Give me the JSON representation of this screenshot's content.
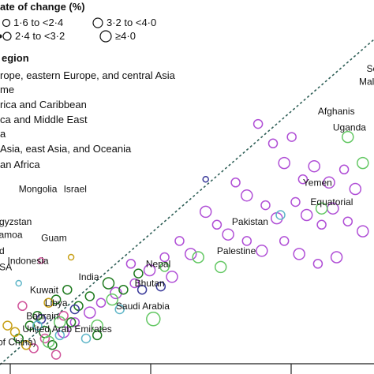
{
  "colors": {
    "europe": "#a7a9ac",
    "latin_america": "#1f7a1f",
    "middle_east": "#d0559b",
    "south_asia": "#3b3b9a",
    "southeast_asia": "#c8a017",
    "sub_saharan": "#b04fd6",
    "high_income": "#5fb6c8",
    "other": "#64c864",
    "reference_line": "#2f5f57"
  },
  "legend": {
    "rate_title": "ate of change (%)",
    "rate_items": [
      "1·6 to <2·4",
      "3·2 to <4·0",
      "2·4 to <3·2",
      "≥4·0"
    ],
    "region_title": "egion",
    "region_items": [
      "rope, eastern Europe, and central Asia",
      "me",
      "rica and Caribbean",
      "ca and Middle East",
      "a",
      "Asia, east Asia, and Oceania",
      "an Africa"
    ]
  },
  "chart_data": {
    "type": "scatter",
    "title": "",
    "xlabel": "",
    "ylabel": "",
    "grid": false,
    "reference_line": "dashed diagonal (y = x)",
    "series": [
      {
        "region": "sub_saharan",
        "points": [
          {
            "x": 0.69,
            "y": 0.74,
            "size": 2
          },
          {
            "x": 0.73,
            "y": 0.68,
            "size": 2
          },
          {
            "x": 0.78,
            "y": 0.7,
            "size": 2
          },
          {
            "x": 0.76,
            "y": 0.62,
            "size": 3
          },
          {
            "x": 0.84,
            "y": 0.61,
            "size": 3
          },
          {
            "x": 0.81,
            "y": 0.57,
            "size": 2
          },
          {
            "x": 0.88,
            "y": 0.56,
            "size": 3
          },
          {
            "x": 0.92,
            "y": 0.6,
            "size": 2
          },
          {
            "x": 0.95,
            "y": 0.54,
            "size": 3
          },
          {
            "x": 0.63,
            "y": 0.56,
            "size": 2
          },
          {
            "x": 0.66,
            "y": 0.52,
            "size": 3
          },
          {
            "x": 0.71,
            "y": 0.49,
            "size": 2
          },
          {
            "x": 0.74,
            "y": 0.45,
            "size": 3
          },
          {
            "x": 0.79,
            "y": 0.5,
            "size": 2
          },
          {
            "x": 0.82,
            "y": 0.46,
            "size": 3
          },
          {
            "x": 0.86,
            "y": 0.43,
            "size": 2
          },
          {
            "x": 0.89,
            "y": 0.48,
            "size": 3
          },
          {
            "x": 0.93,
            "y": 0.44,
            "size": 2
          },
          {
            "x": 0.97,
            "y": 0.41,
            "size": 3
          },
          {
            "x": 0.55,
            "y": 0.47,
            "size": 3
          },
          {
            "x": 0.58,
            "y": 0.43,
            "size": 2
          },
          {
            "x": 0.61,
            "y": 0.4,
            "size": 3
          },
          {
            "x": 0.66,
            "y": 0.38,
            "size": 2
          },
          {
            "x": 0.7,
            "y": 0.35,
            "size": 3
          },
          {
            "x": 0.76,
            "y": 0.38,
            "size": 2
          },
          {
            "x": 0.8,
            "y": 0.34,
            "size": 3
          },
          {
            "x": 0.85,
            "y": 0.31,
            "size": 2
          },
          {
            "x": 0.9,
            "y": 0.33,
            "size": 3
          },
          {
            "x": 0.48,
            "y": 0.38,
            "size": 2
          },
          {
            "x": 0.51,
            "y": 0.34,
            "size": 3
          },
          {
            "x": 0.44,
            "y": 0.33,
            "size": 2
          },
          {
            "x": 0.4,
            "y": 0.29,
            "size": 3
          },
          {
            "x": 0.36,
            "y": 0.25,
            "size": 2
          },
          {
            "x": 0.31,
            "y": 0.22,
            "size": 3
          },
          {
            "x": 0.27,
            "y": 0.19,
            "size": 2
          },
          {
            "x": 0.24,
            "y": 0.16,
            "size": 3
          },
          {
            "x": 0.2,
            "y": 0.13,
            "size": 2
          },
          {
            "x": 0.17,
            "y": 0.1,
            "size": 3
          },
          {
            "x": 0.35,
            "y": 0.31,
            "size": 2
          },
          {
            "x": 0.46,
            "y": 0.27,
            "size": 3
          }
        ]
      },
      {
        "region": "latin_america",
        "points": [
          {
            "x": 0.15,
            "y": 0.2,
            "size": 2
          },
          {
            "x": 0.18,
            "y": 0.23,
            "size": 2
          },
          {
            "x": 0.21,
            "y": 0.18,
            "size": 2
          },
          {
            "x": 0.24,
            "y": 0.21,
            "size": 2
          },
          {
            "x": 0.1,
            "y": 0.15,
            "size": 2
          },
          {
            "x": 0.12,
            "y": 0.1,
            "size": 3
          },
          {
            "x": 0.08,
            "y": 0.12,
            "size": 2
          },
          {
            "x": 0.29,
            "y": 0.25,
            "size": 3
          },
          {
            "x": 0.33,
            "y": 0.23,
            "size": 2
          },
          {
            "x": 0.05,
            "y": 0.08,
            "size": 2
          },
          {
            "x": 0.14,
            "y": 0.06,
            "size": 2
          },
          {
            "x": 0.37,
            "y": 0.28,
            "size": 2
          },
          {
            "x": 0.19,
            "y": 0.13,
            "size": 2
          },
          {
            "x": 0.26,
            "y": 0.09,
            "size": 2
          }
        ]
      },
      {
        "region": "middle_east",
        "points": [
          {
            "x": 0.11,
            "y": 0.32,
            "size": 1
          },
          {
            "x": 0.06,
            "y": 0.18,
            "size": 2
          },
          {
            "x": 0.12,
            "y": 0.08,
            "size": 2
          },
          {
            "x": 0.09,
            "y": 0.05,
            "size": 2
          },
          {
            "x": 0.15,
            "y": 0.03,
            "size": 2
          },
          {
            "x": 0.17,
            "y": 0.15,
            "size": 2
          }
        ]
      },
      {
        "region": "south_asia",
        "points": [
          {
            "x": 0.2,
            "y": 0.17,
            "size": 2
          },
          {
            "x": 0.38,
            "y": 0.23,
            "size": 2
          },
          {
            "x": 0.43,
            "y": 0.24,
            "size": 2
          },
          {
            "x": 0.55,
            "y": 0.57,
            "size": 1
          },
          {
            "x": 0.11,
            "y": 0.14,
            "size": 2
          }
        ]
      },
      {
        "region": "southeast_asia",
        "points": [
          {
            "x": 0.19,
            "y": 0.33,
            "size": 1
          },
          {
            "x": 0.04,
            "y": 0.1,
            "size": 2
          },
          {
            "x": 0.07,
            "y": 0.06,
            "size": 2
          },
          {
            "x": 0.02,
            "y": 0.12,
            "size": 2
          },
          {
            "x": 0.13,
            "y": 0.19,
            "size": 2
          }
        ]
      },
      {
        "region": "high_income",
        "points": [
          {
            "x": 0.05,
            "y": 0.25,
            "size": 1
          },
          {
            "x": 0.1,
            "y": 0.12,
            "size": 2
          },
          {
            "x": 0.16,
            "y": 0.09,
            "size": 2
          },
          {
            "x": 0.32,
            "y": 0.17,
            "size": 2
          },
          {
            "x": 0.75,
            "y": 0.46,
            "size": 2
          },
          {
            "x": 0.23,
            "y": 0.08,
            "size": 2
          }
        ]
      },
      {
        "region": "other",
        "points": [
          {
            "x": 0.86,
            "y": 0.48,
            "size": 3
          },
          {
            "x": 0.93,
            "y": 0.7,
            "size": 3
          },
          {
            "x": 0.97,
            "y": 0.62,
            "size": 3
          },
          {
            "x": 0.59,
            "y": 0.3,
            "size": 3
          },
          {
            "x": 0.44,
            "y": 0.3,
            "size": 2
          },
          {
            "x": 0.53,
            "y": 0.33,
            "size": 3
          },
          {
            "x": 0.41,
            "y": 0.14,
            "size": 4
          },
          {
            "x": 0.26,
            "y": 0.12,
            "size": 3
          },
          {
            "x": 0.13,
            "y": 0.07,
            "size": 3
          },
          {
            "x": 0.16,
            "y": 0.13,
            "size": 3
          },
          {
            "x": 0.3,
            "y": 0.2,
            "size": 3
          }
        ]
      }
    ],
    "labels": [
      {
        "text": "Sc",
        "x": 0.98,
        "y": 0.9
      },
      {
        "text": "Mali",
        "x": 0.96,
        "y": 0.86
      },
      {
        "text": "Afghanis",
        "x": 0.85,
        "y": 0.77
      },
      {
        "text": "Uganda",
        "x": 0.89,
        "y": 0.72
      },
      {
        "text": "Yemen",
        "x": 0.81,
        "y": 0.55
      },
      {
        "text": "Equatorial",
        "x": 0.83,
        "y": 0.49
      },
      {
        "text": "Pakistan",
        "x": 0.62,
        "y": 0.43
      },
      {
        "text": "Palestine",
        "x": 0.58,
        "y": 0.34
      },
      {
        "text": "Mongolia",
        "x": 0.05,
        "y": 0.53
      },
      {
        "text": "Israel",
        "x": 0.17,
        "y": 0.53
      },
      {
        "text": "Kyrgyzstan",
        "x": -0.04,
        "y": 0.43
      },
      {
        "text": "Samoa",
        "x": -0.02,
        "y": 0.39
      },
      {
        "text": "Guam",
        "x": 0.11,
        "y": 0.38
      },
      {
        "text": "aland",
        "x": -0.05,
        "y": 0.34
      },
      {
        "text": "Indonesia",
        "x": 0.02,
        "y": 0.31
      },
      {
        "text": "USA",
        "x": -0.02,
        "y": 0.29
      },
      {
        "text": "Nepal",
        "x": 0.39,
        "y": 0.3
      },
      {
        "text": "India",
        "x": 0.21,
        "y": 0.26
      },
      {
        "text": "Bhutan",
        "x": 0.36,
        "y": 0.24
      },
      {
        "text": "Kuwait",
        "x": 0.08,
        "y": 0.22
      },
      {
        "text": "Libya",
        "x": 0.12,
        "y": 0.18
      },
      {
        "text": "Saudi Arabia",
        "x": 0.31,
        "y": 0.17
      },
      {
        "text": "Bahrain",
        "x": 0.07,
        "y": 0.14
      },
      {
        "text": "United Arab Emirates",
        "x": 0.06,
        "y": 0.1
      },
      {
        "text": "ce of China)",
        "x": -0.04,
        "y": 0.06
      }
    ]
  }
}
